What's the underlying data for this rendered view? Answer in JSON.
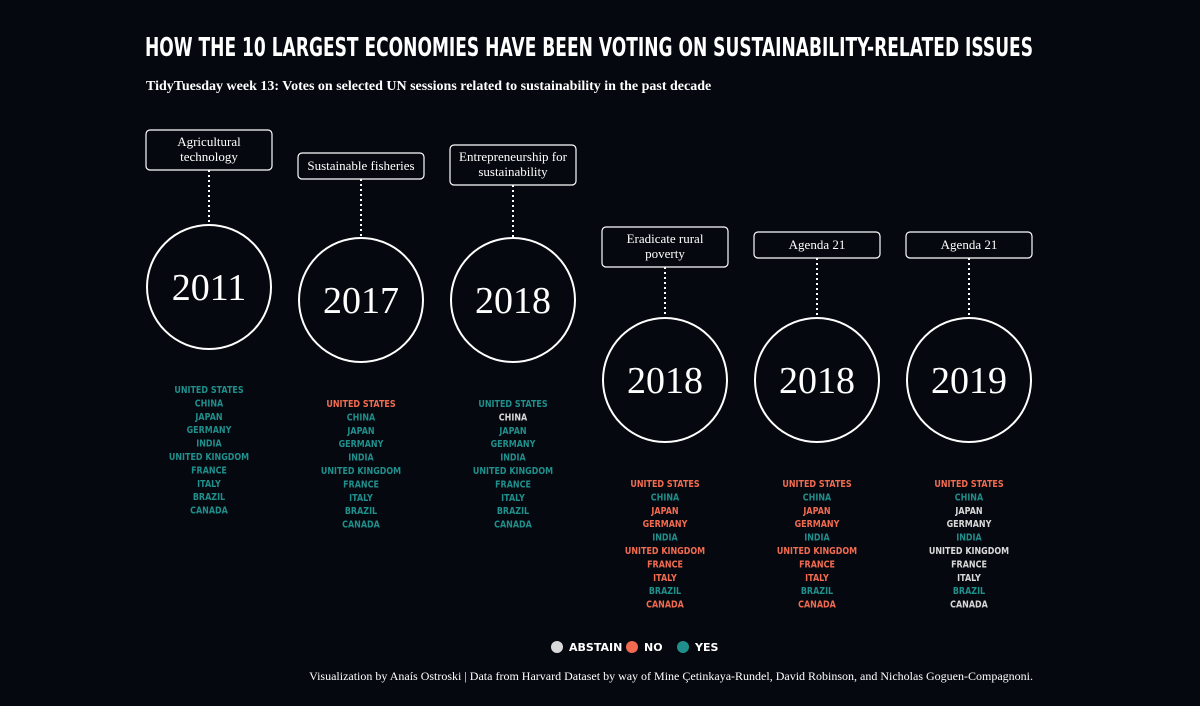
{
  "header": {
    "title": "HOW THE 10 LARGEST ECONOMIES HAVE BEEN VOTING ON SUSTAINABILITY-RELATED ISSUES",
    "subtitle": "TidyTuesday week 13: Votes on selected UN sessions related to sustainability in the past decade"
  },
  "legend": [
    {
      "label": "ABSTAIN",
      "color": "#d9d9d9"
    },
    {
      "label": "NO",
      "color": "#f26b50"
    },
    {
      "label": "YES",
      "color": "#1f8f8c"
    }
  ],
  "sessions": [
    {
      "topic": [
        "Agricultural",
        "technology"
      ],
      "year": "2011",
      "votes": [
        [
          "UNITED STATES",
          "YES"
        ],
        [
          "CHINA",
          "YES"
        ],
        [
          "JAPAN",
          "YES"
        ],
        [
          "GERMANY",
          "YES"
        ],
        [
          "INDIA",
          "YES"
        ],
        [
          "UNITED KINGDOM",
          "YES"
        ],
        [
          "FRANCE",
          "YES"
        ],
        [
          "ITALY",
          "YES"
        ],
        [
          "BRAZIL",
          "YES"
        ],
        [
          "CANADA",
          "YES"
        ]
      ]
    },
    {
      "topic": [
        "Sustainable fisheries"
      ],
      "year": "2017",
      "votes": [
        [
          "UNITED STATES",
          "NO"
        ],
        [
          "CHINA",
          "YES"
        ],
        [
          "JAPAN",
          "YES"
        ],
        [
          "GERMANY",
          "YES"
        ],
        [
          "INDIA",
          "YES"
        ],
        [
          "UNITED KINGDOM",
          "YES"
        ],
        [
          "FRANCE",
          "YES"
        ],
        [
          "ITALY",
          "YES"
        ],
        [
          "BRAZIL",
          "YES"
        ],
        [
          "CANADA",
          "YES"
        ]
      ]
    },
    {
      "topic": [
        "Entrepreneurship for",
        "sustainability"
      ],
      "year": "2018",
      "votes": [
        [
          "UNITED STATES",
          "YES"
        ],
        [
          "CHINA",
          "ABSTAIN"
        ],
        [
          "JAPAN",
          "YES"
        ],
        [
          "GERMANY",
          "YES"
        ],
        [
          "INDIA",
          "YES"
        ],
        [
          "UNITED KINGDOM",
          "YES"
        ],
        [
          "FRANCE",
          "YES"
        ],
        [
          "ITALY",
          "YES"
        ],
        [
          "BRAZIL",
          "YES"
        ],
        [
          "CANADA",
          "YES"
        ]
      ]
    },
    {
      "topic": [
        "Eradicate rural",
        "poverty"
      ],
      "year": "2018",
      "votes": [
        [
          "UNITED STATES",
          "NO"
        ],
        [
          "CHINA",
          "YES"
        ],
        [
          "JAPAN",
          "NO"
        ],
        [
          "GERMANY",
          "NO"
        ],
        [
          "INDIA",
          "YES"
        ],
        [
          "UNITED KINGDOM",
          "NO"
        ],
        [
          "FRANCE",
          "NO"
        ],
        [
          "ITALY",
          "NO"
        ],
        [
          "BRAZIL",
          "YES"
        ],
        [
          "CANADA",
          "NO"
        ]
      ]
    },
    {
      "topic": [
        "Agenda 21"
      ],
      "year": "2018",
      "votes": [
        [
          "UNITED STATES",
          "NO"
        ],
        [
          "CHINA",
          "YES"
        ],
        [
          "JAPAN",
          "NO"
        ],
        [
          "GERMANY",
          "NO"
        ],
        [
          "INDIA",
          "YES"
        ],
        [
          "UNITED KINGDOM",
          "NO"
        ],
        [
          "FRANCE",
          "NO"
        ],
        [
          "ITALY",
          "NO"
        ],
        [
          "BRAZIL",
          "YES"
        ],
        [
          "CANADA",
          "NO"
        ]
      ]
    },
    {
      "topic": [
        "Agenda 21"
      ],
      "year": "2019",
      "votes": [
        [
          "UNITED STATES",
          "NO"
        ],
        [
          "CHINA",
          "YES"
        ],
        [
          "JAPAN",
          "ABSTAIN"
        ],
        [
          "GERMANY",
          "ABSTAIN"
        ],
        [
          "INDIA",
          "YES"
        ],
        [
          "UNITED KINGDOM",
          "ABSTAIN"
        ],
        [
          "FRANCE",
          "ABSTAIN"
        ],
        [
          "ITALY",
          "ABSTAIN"
        ],
        [
          "BRAZIL",
          "YES"
        ],
        [
          "CANADA",
          "ABSTAIN"
        ]
      ]
    }
  ],
  "footer": {
    "credit": "Visualization by Anaís Ostroski | Data from Harvard Dataset by way of Mine Çetinkaya-Rundel, David Robinson, and Nicholas Goguen-Compagnoni."
  }
}
